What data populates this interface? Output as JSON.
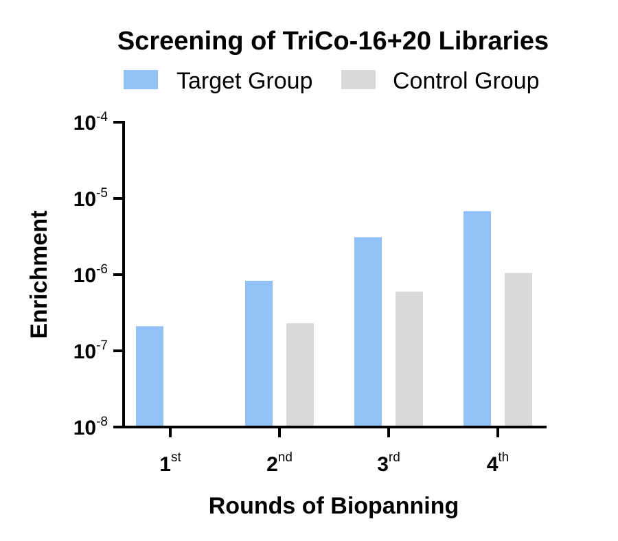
{
  "chart_data": {
    "type": "bar",
    "title": "Screening of TriCo-16+20 Libraries",
    "xlabel": "Rounds of Biopanning",
    "ylabel": "Enrichment",
    "yscale": "log",
    "ylim": [
      1e-08,
      0.0001
    ],
    "yticks": [
      {
        "base": "10",
        "exp": "-4",
        "value": 0.0001
      },
      {
        "base": "10",
        "exp": "-5",
        "value": 1e-05
      },
      {
        "base": "10",
        "exp": "-6",
        "value": 1e-06
      },
      {
        "base": "10",
        "exp": "-7",
        "value": 1e-07
      },
      {
        "base": "10",
        "exp": "-8",
        "value": 1e-08
      }
    ],
    "categories": [
      {
        "num": "1",
        "sup": "st"
      },
      {
        "num": "2",
        "sup": "nd"
      },
      {
        "num": "3",
        "sup": "rd"
      },
      {
        "num": "4",
        "sup": "th"
      }
    ],
    "series": [
      {
        "name": "Target Group",
        "color": "#92C1F8",
        "values": [
          2.1e-07,
          8.3e-07,
          3.1e-06,
          6.8e-06
        ]
      },
      {
        "name": "Control Group",
        "color": "#D9D9D9",
        "values": [
          null,
          2.3e-07,
          6e-07,
          1.05e-06
        ]
      }
    ],
    "legend_position": "top",
    "grid": false
  }
}
